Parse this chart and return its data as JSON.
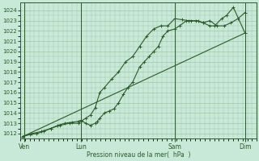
{
  "xlabel": "Pression niveau de la mer(  hPa  )",
  "ylim": [
    1011.5,
    1024.8
  ],
  "yticks": [
    1012,
    1013,
    1014,
    1015,
    1016,
    1017,
    1018,
    1019,
    1020,
    1021,
    1022,
    1023,
    1024
  ],
  "background_color": "#c8e8d8",
  "grid_color": "#a0c8a8",
  "line_color": "#2d5a2d",
  "day_labels": [
    "Ven",
    "Lun",
    "Sam",
    "Dim"
  ],
  "day_positions": [
    0.08,
    2.5,
    6.5,
    9.5
  ],
  "vline_positions": [
    0.08,
    2.5,
    6.5,
    9.5
  ],
  "xlim": [
    -0.1,
    10.0
  ],
  "line1_x": [
    0.0,
    0.3,
    0.6,
    0.9,
    1.2,
    1.5,
    1.8,
    2.1,
    2.4,
    2.5,
    2.7,
    2.9,
    3.1,
    3.2,
    3.3,
    3.5,
    3.7,
    3.9,
    4.1,
    4.3,
    4.5,
    4.7,
    5.0,
    5.2,
    5.4,
    5.6,
    5.8,
    6.0,
    6.2,
    6.5,
    6.7,
    7.0,
    7.2,
    7.5,
    7.7,
    8.0,
    8.2,
    8.5,
    8.7,
    9.0,
    9.5
  ],
  "line1_y": [
    1011.7,
    1011.9,
    1012.0,
    1012.2,
    1012.5,
    1012.8,
    1013.0,
    1013.1,
    1013.2,
    1013.3,
    1013.0,
    1012.8,
    1013.0,
    1013.2,
    1013.5,
    1014.0,
    1014.2,
    1014.4,
    1015.0,
    1015.8,
    1016.5,
    1017.0,
    1018.5,
    1019.0,
    1019.5,
    1020.0,
    1020.5,
    1021.5,
    1022.0,
    1022.2,
    1022.5,
    1023.0,
    1023.0,
    1023.0,
    1022.8,
    1022.5,
    1022.5,
    1023.2,
    1023.5,
    1024.3,
    1021.8
  ],
  "line2_x": [
    0.0,
    0.4,
    0.8,
    1.2,
    1.6,
    2.0,
    2.4,
    2.5,
    2.7,
    2.9,
    3.1,
    3.3,
    3.5,
    3.8,
    4.1,
    4.4,
    4.7,
    5.0,
    5.3,
    5.6,
    5.9,
    6.2,
    6.5,
    6.8,
    7.1,
    7.4,
    7.7,
    8.0,
    8.3,
    8.6,
    8.9,
    9.2,
    9.5
  ],
  "line2_y": [
    1011.7,
    1012.0,
    1012.2,
    1012.5,
    1012.8,
    1013.0,
    1013.0,
    1013.2,
    1013.5,
    1013.8,
    1014.5,
    1016.0,
    1016.5,
    1017.3,
    1018.0,
    1019.0,
    1019.5,
    1020.5,
    1021.5,
    1022.2,
    1022.5,
    1022.5,
    1023.2,
    1023.1,
    1023.0,
    1023.0,
    1022.8,
    1023.0,
    1022.5,
    1022.5,
    1022.8,
    1023.2,
    1023.8
  ],
  "line3_x": [
    0.0,
    9.5
  ],
  "line3_y": [
    1011.7,
    1021.8
  ],
  "xlim_plot": [
    -0.1,
    10.0
  ]
}
